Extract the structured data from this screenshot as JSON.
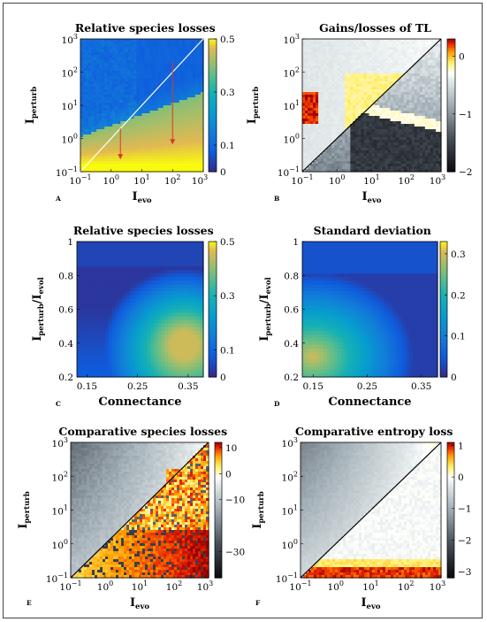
{
  "chart_data": [
    {
      "panel": "A",
      "type": "heatmap",
      "title": "Relative species losses",
      "xlabel": "I",
      "xlabel_sub": "evo",
      "ylabel": "I",
      "ylabel_sub": "perturb",
      "x_scale": "log",
      "y_scale": "log",
      "xlim": [
        0.1,
        1000
      ],
      "ylim": [
        0.1,
        1000
      ],
      "x_ticks": [
        {
          "base": "10",
          "exp": "−1"
        },
        {
          "base": "10",
          "exp": "0"
        },
        {
          "base": "10",
          "exp": "1"
        },
        {
          "base": "10",
          "exp": "2"
        },
        {
          "base": "10",
          "exp": "3"
        }
      ],
      "y_ticks": [
        {
          "base": "10",
          "exp": "−1"
        },
        {
          "base": "10",
          "exp": "0"
        },
        {
          "base": "10",
          "exp": "1"
        },
        {
          "base": "10",
          "exp": "2"
        },
        {
          "base": "10",
          "exp": "3"
        }
      ],
      "colormap": "parula",
      "colorbar_range": [
        0,
        0.5
      ],
      "colorbar_ticks": [
        "0.5",
        "0.3",
        "0.1",
        "0"
      ],
      "diagonal_color": "#ffffff",
      "arrows": [
        {
          "x": 2,
          "y_from": 2,
          "y_to": 0.25
        },
        {
          "x": 100,
          "y_from": 200,
          "y_to": 0.7
        }
      ]
    },
    {
      "panel": "B",
      "type": "heatmap",
      "title": "Gains/losses of TL",
      "xlabel": "I",
      "xlabel_sub": "evo",
      "ylabel": "I",
      "ylabel_sub": "perturb",
      "x_scale": "log",
      "y_scale": "log",
      "xlim": [
        0.1,
        1000
      ],
      "ylim": [
        0.1,
        1000
      ],
      "x_ticks": [
        {
          "base": "10",
          "exp": "−1"
        },
        {
          "base": "10",
          "exp": "0"
        },
        {
          "base": "10",
          "exp": "1"
        },
        {
          "base": "10",
          "exp": "2"
        },
        {
          "base": "10",
          "exp": "3"
        }
      ],
      "y_ticks": [
        {
          "base": "10",
          "exp": "−1"
        },
        {
          "base": "10",
          "exp": "0"
        },
        {
          "base": "10",
          "exp": "1"
        },
        {
          "base": "10",
          "exp": "2"
        },
        {
          "base": "10",
          "exp": "3"
        }
      ],
      "colormap": "diverging-hot-bone",
      "colorbar_range": [
        -2,
        0.3
      ],
      "colorbar_ticks": [
        "0",
        "−1",
        "−2"
      ],
      "diagonal_color": "#000000"
    },
    {
      "panel": "C",
      "type": "heatmap",
      "title": "Relative species losses",
      "xlabel": "Connectance",
      "ylabel": "I",
      "ylabel_sub": "perturb",
      "ylabel_tail": "/I",
      "ylabel_sub2": "evol",
      "xlim": [
        0.13,
        0.38
      ],
      "ylim": [
        0.2,
        1
      ],
      "x_ticks": [
        "0.15",
        "0.25",
        "0.35"
      ],
      "y_ticks": [
        "0.2",
        "0.4",
        "0.6",
        "0.8",
        "1"
      ],
      "colormap": "parula",
      "colorbar_range": [
        0,
        0.5
      ],
      "colorbar_ticks": [
        "0.5",
        "0.3",
        "0.1",
        "0"
      ]
    },
    {
      "panel": "D",
      "type": "heatmap",
      "title": "Standard deviation",
      "xlabel": "Connectance",
      "ylabel": "I",
      "ylabel_sub": "perturb",
      "ylabel_tail": "/I",
      "ylabel_sub2": "evol",
      "xlim": [
        0.13,
        0.38
      ],
      "ylim": [
        0.2,
        1
      ],
      "x_ticks": [
        "0.15",
        "0.25",
        "0.35"
      ],
      "y_ticks": [
        "0.2",
        "0.4",
        "0.6",
        "0.8",
        "1"
      ],
      "colormap": "parula",
      "colorbar_range": [
        0,
        0.33
      ],
      "colorbar_ticks": [
        "0.3",
        "0.2",
        "0.1",
        "0"
      ]
    },
    {
      "panel": "E",
      "type": "heatmap",
      "title": "Comparative species losses",
      "xlabel": "I",
      "xlabel_sub": "evo",
      "ylabel": "I",
      "ylabel_sub": "perturb",
      "x_scale": "log",
      "y_scale": "log",
      "xlim": [
        0.1,
        1000
      ],
      "ylim": [
        0.1,
        1000
      ],
      "x_ticks": [
        {
          "base": "10",
          "exp": "−1"
        },
        {
          "base": "10",
          "exp": "0"
        },
        {
          "base": "10",
          "exp": "1"
        },
        {
          "base": "10",
          "exp": "2"
        },
        {
          "base": "10",
          "exp": "3"
        }
      ],
      "y_ticks": [
        {
          "base": "10",
          "exp": "−1"
        },
        {
          "base": "10",
          "exp": "0"
        },
        {
          "base": "10",
          "exp": "1"
        },
        {
          "base": "10",
          "exp": "2"
        },
        {
          "base": "10",
          "exp": "3"
        }
      ],
      "colormap": "diverging-hot-bone",
      "colorbar_range": [
        -40,
        12
      ],
      "colorbar_ticks": [
        "10",
        "0",
        "−10",
        "−30"
      ],
      "diagonal_color": "#000000"
    },
    {
      "panel": "F",
      "type": "heatmap",
      "title": "Comparative entropy loss",
      "xlabel": "I",
      "xlabel_sub": "evo",
      "ylabel": "I",
      "ylabel_sub": "perturb",
      "x_scale": "log",
      "y_scale": "log",
      "xlim": [
        0.1,
        1000
      ],
      "ylim": [
        0.1,
        1000
      ],
      "x_ticks": [
        {
          "base": "10",
          "exp": "−1"
        },
        {
          "base": "10",
          "exp": "0"
        },
        {
          "base": "10",
          "exp": "1"
        },
        {
          "base": "10",
          "exp": "2"
        },
        {
          "base": "10",
          "exp": "3"
        }
      ],
      "y_ticks": [
        {
          "base": "10",
          "exp": "−1"
        },
        {
          "base": "10",
          "exp": "0"
        },
        {
          "base": "10",
          "exp": "1"
        },
        {
          "base": "10",
          "exp": "2"
        },
        {
          "base": "10",
          "exp": "3"
        }
      ],
      "colormap": "diverging-hot-bone",
      "colorbar_range": [
        -3.2,
        1.1
      ],
      "colorbar_ticks": [
        "1",
        "0",
        "−1",
        "−2",
        "−3"
      ],
      "diagonal_color": "#000000"
    }
  ]
}
